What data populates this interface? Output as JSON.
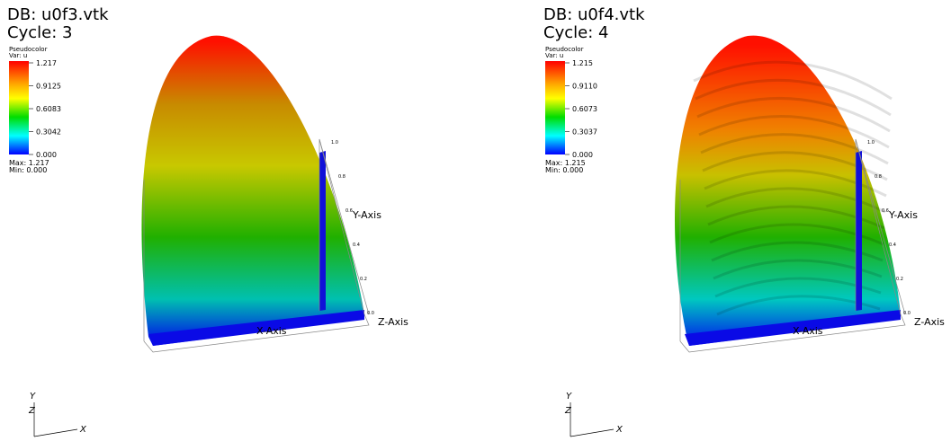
{
  "panels": [
    {
      "db": "DB: u0f3.vtk",
      "cycle": "Cycle: 3",
      "legend": {
        "title": "Pseudocolor",
        "var": "Var: u",
        "ticks": [
          "1.217",
          "0.9125",
          "0.6083",
          "0.3042",
          "0.000"
        ],
        "max": "Max: 1.217",
        "min": "Min: 0.000"
      },
      "axes": {
        "x": "X-Axis",
        "y": "Y-Axis",
        "z": "Z-Axis",
        "yticks": [
          "1.0",
          "0.8",
          "0.6",
          "0.4",
          "0.2",
          "0.0"
        ]
      },
      "triad": {
        "y": "Y",
        "z": "Z",
        "x": "X"
      }
    },
    {
      "db": "DB: u0f4.vtk",
      "cycle": "Cycle: 4",
      "legend": {
        "title": "Pseudocolor",
        "var": "Var: u",
        "ticks": [
          "1.215",
          "0.9110",
          "0.6073",
          "0.3037",
          "0.000"
        ],
        "max": "Max: 1.215",
        "min": "Min: 0.000"
      },
      "axes": {
        "x": "X-Axis",
        "y": "Y-Axis",
        "z": "Z-Axis",
        "yticks": [
          "1.0",
          "0.8",
          "0.6",
          "0.4",
          "0.2",
          "0.0"
        ]
      },
      "triad": {
        "y": "Y",
        "z": "Z",
        "x": "X"
      }
    }
  ]
}
